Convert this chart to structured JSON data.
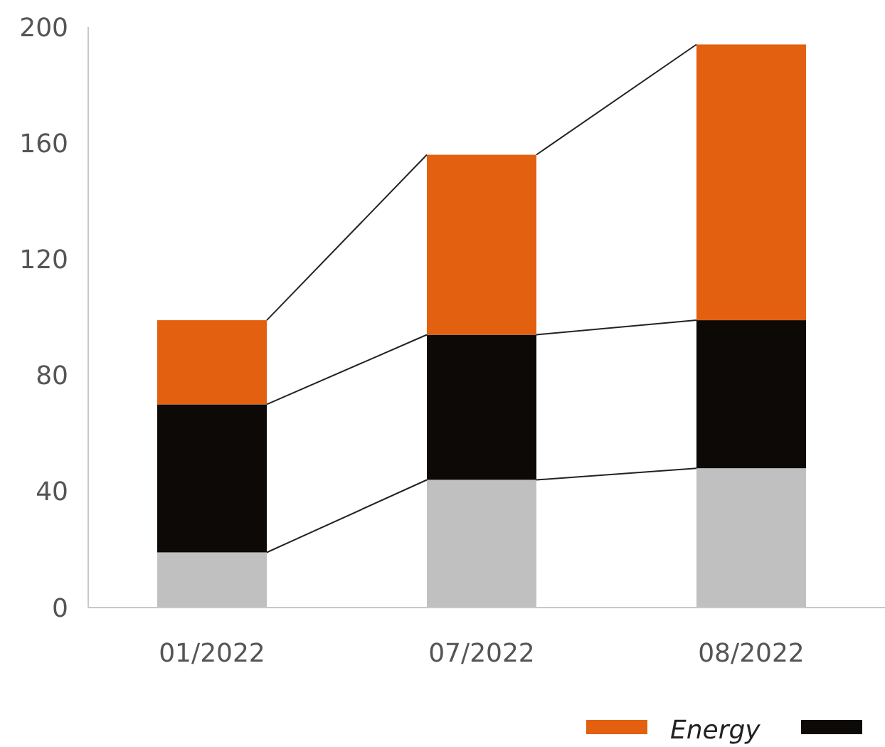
{
  "chart_data": {
    "type": "bar",
    "stacked": true,
    "categories": [
      "01/2022",
      "07/2022",
      "08/2022"
    ],
    "series": [
      {
        "color": "#c0c0c0",
        "values": [
          19,
          44,
          48
        ]
      },
      {
        "color": "#0d0907",
        "values": [
          51,
          50,
          51
        ]
      },
      {
        "name": "Energy",
        "color": "#e2600f",
        "values": [
          29,
          62,
          95
        ]
      }
    ],
    "ylim": [
      0,
      200
    ],
    "yticks": [
      0,
      40,
      80,
      120,
      160,
      200
    ],
    "grid": false,
    "legend": "bottom right"
  }
}
